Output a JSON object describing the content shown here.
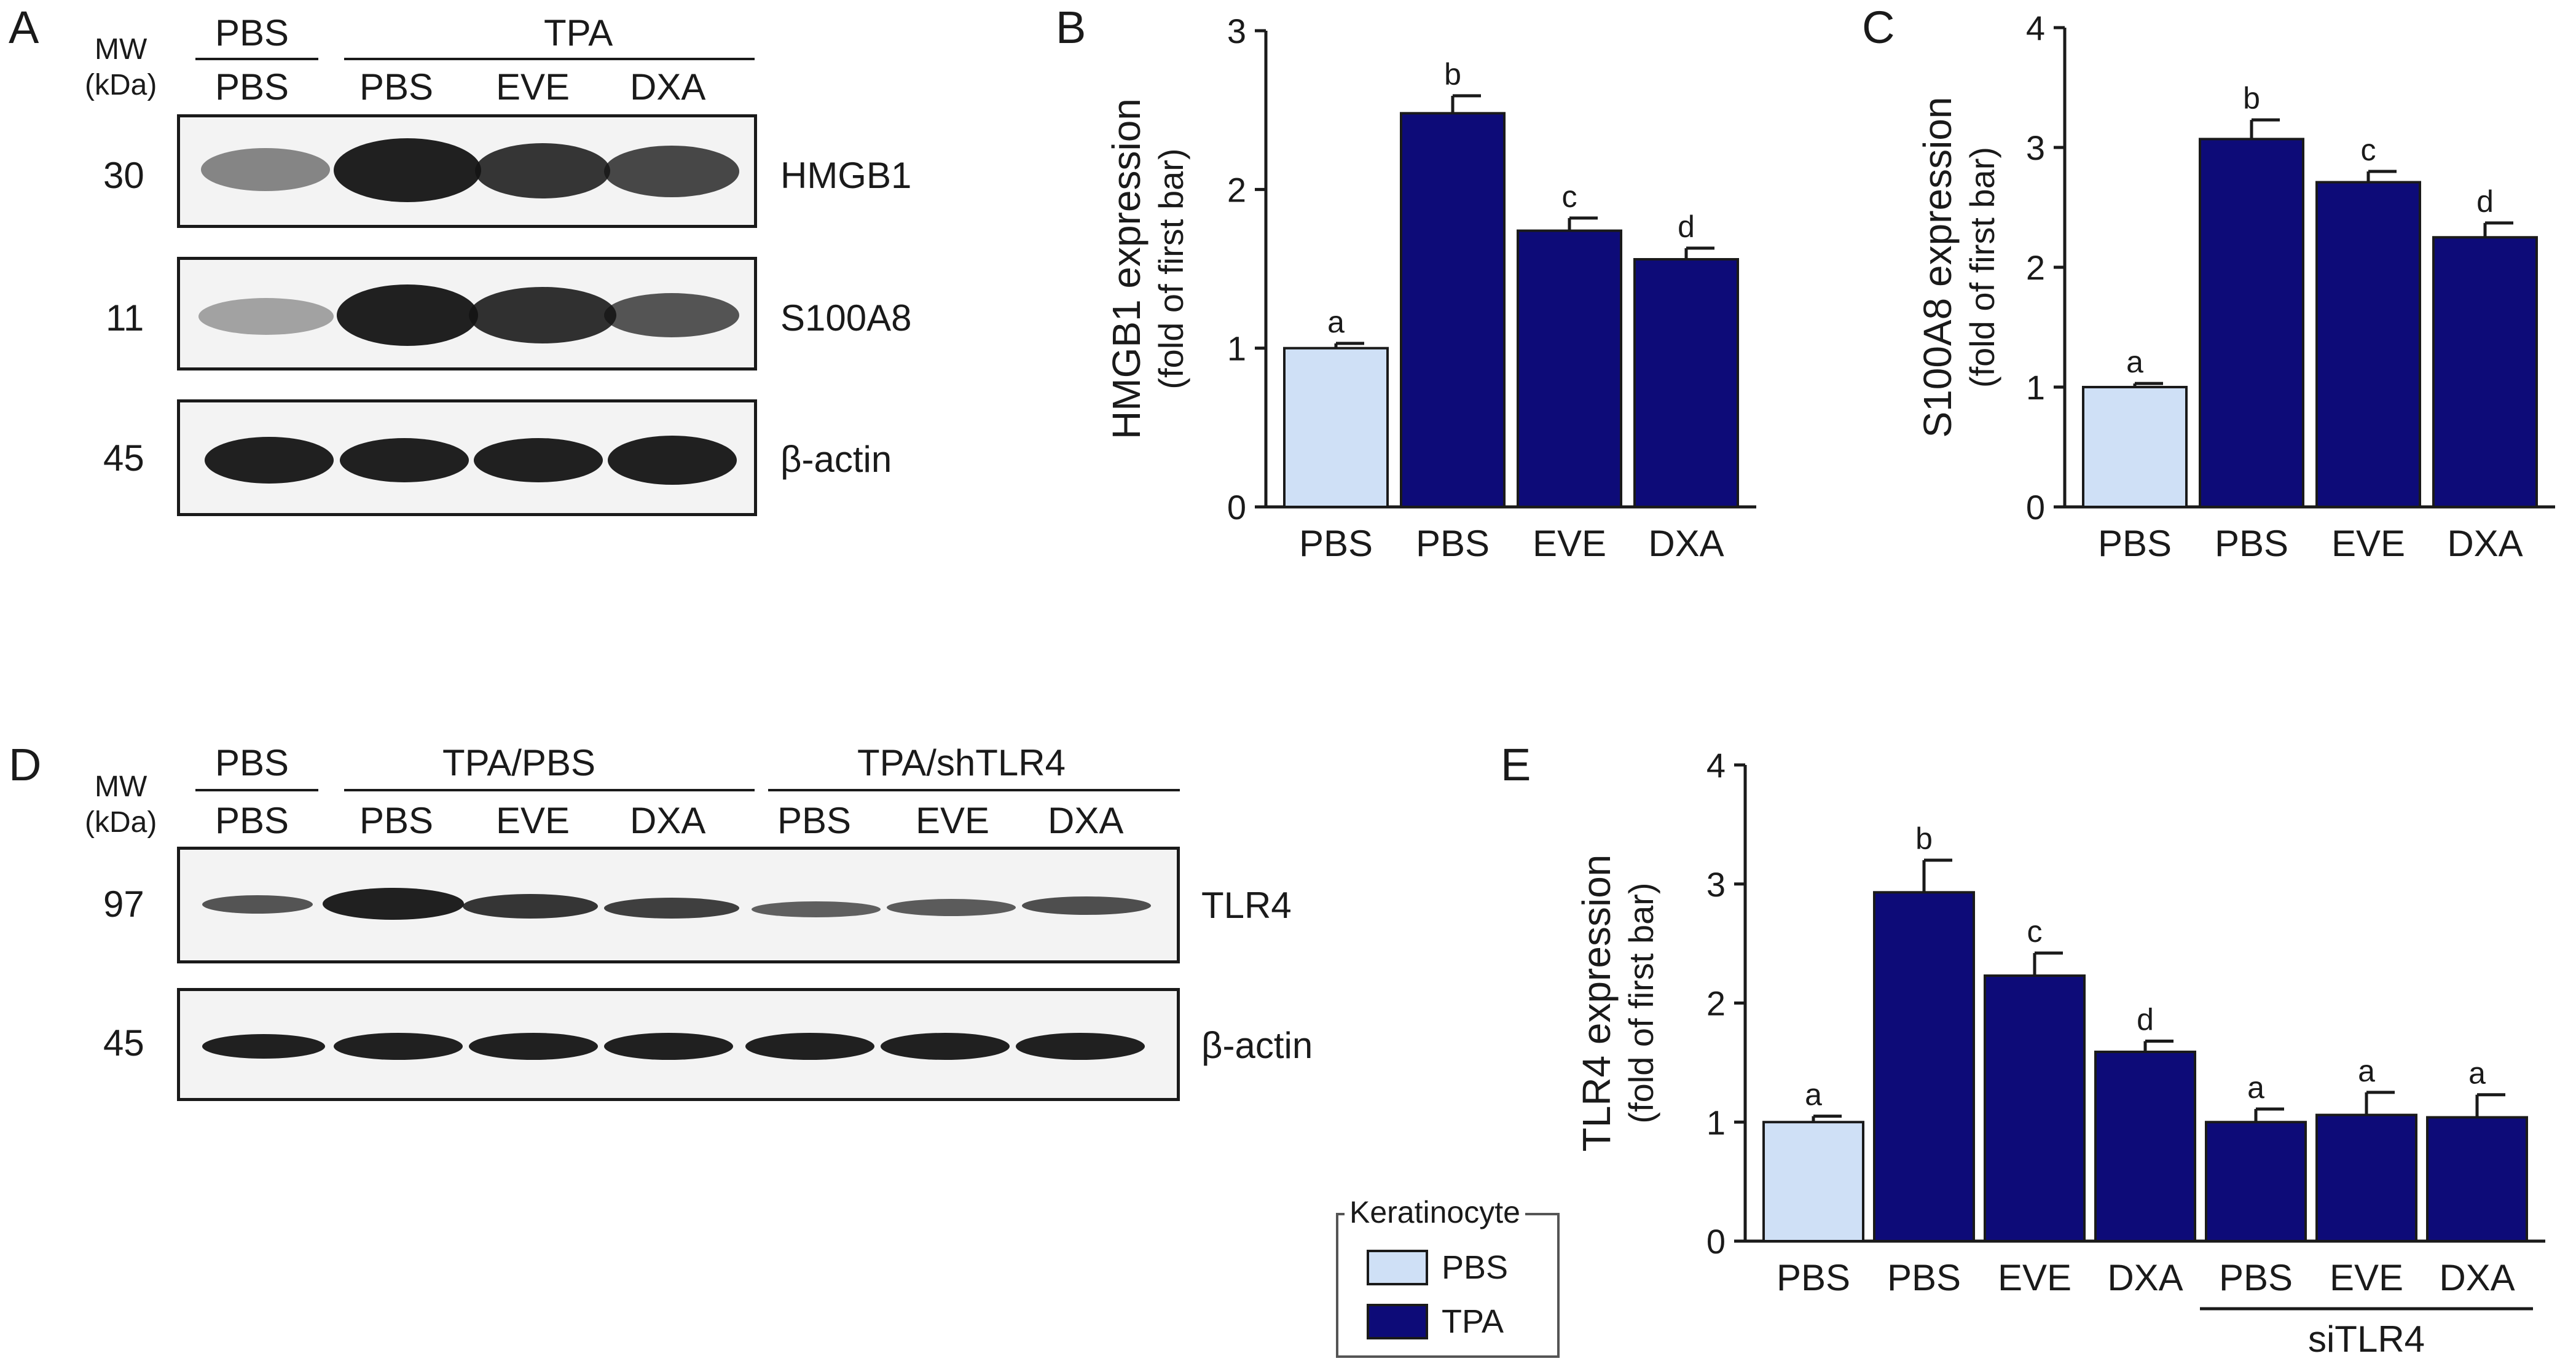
{
  "panel_labels": [
    "A",
    "B",
    "C",
    "D",
    "E"
  ],
  "colors": {
    "pbs": "#cfe0f6",
    "tpa": "#0d0b78",
    "ink": "#1a1a1a"
  },
  "blot_a": {
    "mw_header": "MW",
    "mw_unit": "(kDa)",
    "group_top": [
      "PBS",
      "TPA"
    ],
    "lanes": [
      "PBS",
      "PBS",
      "EVE",
      "DXA"
    ],
    "rows": [
      {
        "mw": "30",
        "label": "HMGB1",
        "intensity": [
          0.55,
          1.0,
          0.85,
          0.75
        ]
      },
      {
        "mw": "11",
        "label": "S100A8",
        "intensity": [
          0.35,
          1.0,
          0.9,
          0.65
        ]
      },
      {
        "mw": "45",
        "label": "β-actin",
        "intensity": [
          1.0,
          1.0,
          1.0,
          1.0
        ]
      }
    ]
  },
  "blot_d": {
    "mw_header": "MW",
    "mw_unit": "(kDa)",
    "group_top": [
      "PBS",
      "TPA/PBS",
      "TPA/shTLR4"
    ],
    "lanes": [
      "PBS",
      "PBS",
      "EVE",
      "DXA",
      "PBS",
      "EVE",
      "DXA"
    ],
    "rows": [
      {
        "mw": "97",
        "label": "TLR4",
        "intensity": [
          0.6,
          1.0,
          0.85,
          0.75,
          0.55,
          0.6,
          0.65
        ]
      },
      {
        "mw": "45",
        "label": "β-actin",
        "intensity": [
          1.0,
          1.0,
          1.0,
          1.0,
          1.0,
          1.0,
          1.0
        ]
      }
    ]
  },
  "legend": {
    "title": "Keratinocyte",
    "items": [
      {
        "label": "PBS",
        "color": "#cfe0f6"
      },
      {
        "label": "TPA",
        "color": "#0d0b78"
      }
    ]
  },
  "chart_data": [
    {
      "panel": "B",
      "type": "bar",
      "categories": [
        "PBS",
        "PBS",
        "EVE",
        "DXA"
      ],
      "values": [
        1.0,
        2.48,
        1.74,
        1.56
      ],
      "errors": [
        0.03,
        0.11,
        0.08,
        0.07
      ],
      "letters": [
        "a",
        "b",
        "c",
        "d"
      ],
      "groups": [
        "PBS",
        "TPA",
        "TPA",
        "TPA"
      ],
      "ylabel": "HMGB1 expression",
      "ylabel2": "(fold of first bar)",
      "ylim": [
        0,
        3
      ],
      "yticks": [
        0,
        1,
        2,
        3
      ]
    },
    {
      "panel": "C",
      "type": "bar",
      "categories": [
        "PBS",
        "PBS",
        "EVE",
        "DXA"
      ],
      "values": [
        1.0,
        3.07,
        2.71,
        2.25
      ],
      "errors": [
        0.03,
        0.16,
        0.09,
        0.12
      ],
      "letters": [
        "a",
        "b",
        "c",
        "d"
      ],
      "groups": [
        "PBS",
        "TPA",
        "TPA",
        "TPA"
      ],
      "ylabel": "S100A8 expression",
      "ylabel2": "(fold of first bar)",
      "ylim": [
        0,
        4
      ],
      "yticks": [
        0,
        1,
        2,
        3,
        4
      ]
    },
    {
      "panel": "E",
      "type": "bar",
      "categories": [
        "PBS",
        "PBS",
        "EVE",
        "DXA",
        "PBS",
        "EVE",
        "DXA"
      ],
      "values": [
        1.0,
        2.93,
        2.23,
        1.59,
        1.0,
        1.06,
        1.04
      ],
      "errors": [
        0.05,
        0.27,
        0.19,
        0.09,
        0.11,
        0.19,
        0.19
      ],
      "letters": [
        "a",
        "b",
        "c",
        "d",
        "a",
        "a",
        "a"
      ],
      "groups": [
        "PBS",
        "TPA",
        "TPA",
        "TPA",
        "TPA",
        "TPA",
        "TPA"
      ],
      "ylabel": "TLR4 expression",
      "ylabel2": "(fold of first bar)",
      "ylim": [
        0,
        4
      ],
      "yticks": [
        0,
        1,
        2,
        3,
        4
      ],
      "bracket_label": "siTLR4"
    }
  ]
}
